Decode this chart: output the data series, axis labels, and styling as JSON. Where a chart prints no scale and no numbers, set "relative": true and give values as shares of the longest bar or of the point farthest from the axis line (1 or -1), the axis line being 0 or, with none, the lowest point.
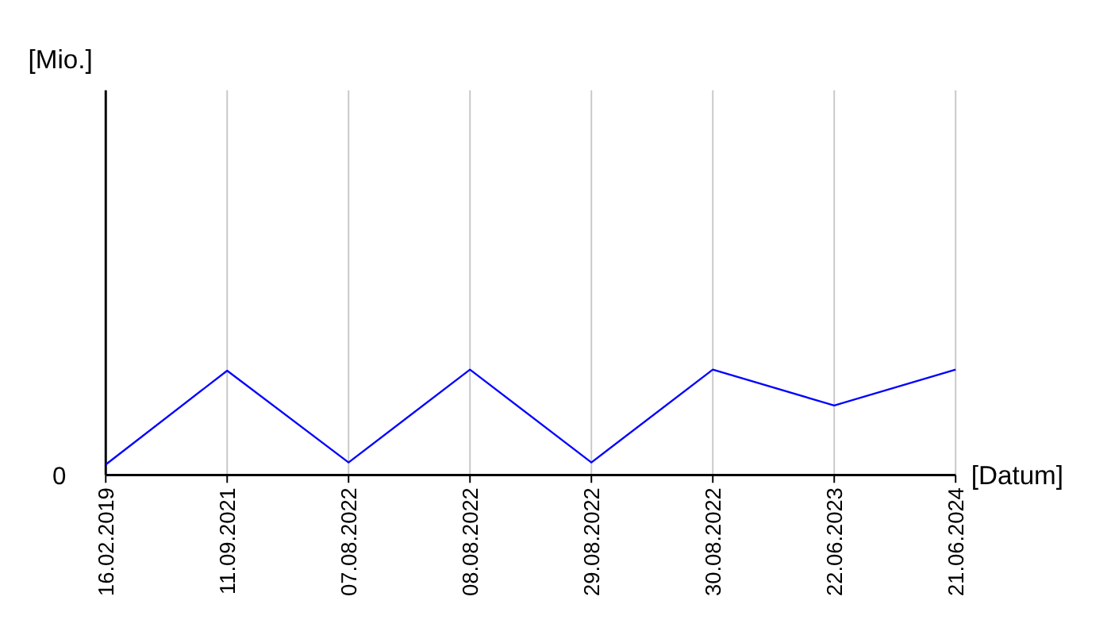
{
  "chart_data": {
    "type": "line",
    "relative": true,
    "xlabel": "[Datum]",
    "annotations": [
      "0",
      "[Mio.]"
    ],
    "categories": [
      "16.02.2019",
      "11.09.2021",
      "07.08.2022",
      "08.08.2022",
      "29.08.2022",
      "30.08.2022",
      "22.06.2023",
      "21.06.2024"
    ],
    "series": [
      {
        "color": "#0000ff",
        "values": [
          0.1,
          0.99,
          0.12,
          1,
          0.12,
          1,
          0.66,
          1
        ]
      }
    ],
    "grid": "x",
    "line_style": "solid"
  }
}
